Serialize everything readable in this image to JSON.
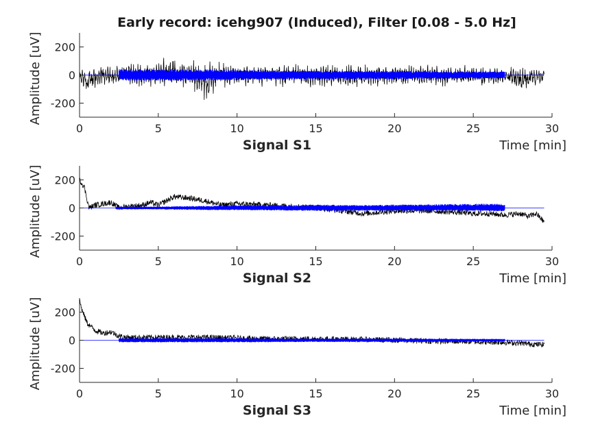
{
  "figure": {
    "title": "Early record: icehg907 (Induced), Filter [0.08 - 5.0 Hz]"
  },
  "colors": {
    "raw_signal": "#000000",
    "filtered_signal": "#0000ff",
    "axes": "#262626"
  },
  "chart_data": [
    {
      "type": "line",
      "title": "Early record: icehg907 (Induced), Filter [0.08 - 5.0 Hz]",
      "xlabel": "Signal S1",
      "x_unit_label": "Time [min]",
      "ylabel": "Amplitude [uV]",
      "xlim": [
        0,
        30
      ],
      "ylim": [
        -300,
        300
      ],
      "xticks": [
        0,
        5,
        10,
        15,
        20,
        25,
        30
      ],
      "yticks": [
        -200,
        0,
        200
      ],
      "grid": false,
      "series": [
        {
          "color": "black",
          "x_range": [
            0,
            29.5
          ],
          "x": [
            0,
            0.5,
            1,
            1.5,
            2,
            2.5,
            3,
            4,
            5,
            6,
            7,
            8,
            9,
            10,
            12,
            14,
            16,
            18,
            20,
            22,
            24,
            26,
            27,
            28,
            29,
            29.5
          ],
          "envelope_upper": [
            40,
            30,
            60,
            80,
            40,
            50,
            60,
            70,
            80,
            110,
            90,
            70,
            70,
            60,
            65,
            60,
            60,
            60,
            55,
            50,
            50,
            45,
            40,
            40,
            30,
            30
          ],
          "envelope_lower": [
            -40,
            -120,
            -80,
            -60,
            -50,
            -60,
            -60,
            -60,
            -70,
            -70,
            -60,
            -160,
            -60,
            -60,
            -60,
            -65,
            -70,
            -80,
            -60,
            -60,
            -60,
            -60,
            -60,
            -100,
            -60,
            -40
          ]
        },
        {
          "color": "blue",
          "x_range": [
            2.5,
            27
          ],
          "x": [
            2.5,
            5,
            8,
            10,
            15,
            20,
            25,
            27
          ],
          "envelope_upper": [
            40,
            40,
            40,
            35,
            30,
            30,
            25,
            25
          ],
          "envelope_lower": [
            -40,
            -40,
            -40,
            -35,
            -30,
            -30,
            -25,
            -25
          ]
        }
      ]
    },
    {
      "type": "line",
      "xlabel": "Signal S2",
      "x_unit_label": "Time [min]",
      "ylabel": "Amplitude [uV]",
      "xlim": [
        0,
        30
      ],
      "ylim": [
        -300,
        300
      ],
      "xticks": [
        0,
        5,
        10,
        15,
        20,
        25,
        30
      ],
      "yticks": [
        -200,
        0,
        200
      ],
      "grid": false,
      "series": [
        {
          "color": "black",
          "x": [
            0,
            0.3,
            0.6,
            1,
            1.5,
            2,
            2.5,
            3,
            4,
            4.5,
            5,
            5.5,
            6,
            7,
            8,
            9,
            10,
            12,
            14,
            15,
            16,
            18,
            20,
            22,
            24,
            25,
            26,
            27,
            28,
            28.5,
            29,
            29.5
          ],
          "y": [
            200,
            150,
            0,
            20,
            30,
            40,
            0,
            10,
            20,
            40,
            20,
            50,
            80,
            70,
            50,
            20,
            30,
            20,
            10,
            0,
            -10,
            -40,
            -20,
            -20,
            -30,
            -40,
            -40,
            -50,
            -40,
            -60,
            -40,
            -100
          ]
        },
        {
          "color": "blue",
          "x_range": [
            2.3,
            27
          ],
          "x": [
            2.3,
            5,
            8,
            10,
            14,
            15,
            18,
            20,
            22,
            25,
            27
          ],
          "envelope_upper": [
            10,
            10,
            15,
            20,
            20,
            25,
            20,
            25,
            25,
            30,
            30
          ],
          "envelope_lower": [
            -10,
            -10,
            -15,
            -15,
            -20,
            -20,
            -20,
            -20,
            -20,
            -20,
            -25
          ]
        }
      ]
    },
    {
      "type": "line",
      "xlabel": "Signal S3",
      "x_unit_label": "Time [min]",
      "ylabel": "Amplitude [uV]",
      "xlim": [
        0,
        30
      ],
      "ylim": [
        -300,
        300
      ],
      "xticks": [
        0,
        5,
        10,
        15,
        20,
        25,
        30
      ],
      "yticks": [
        -200,
        0,
        200
      ],
      "grid": false,
      "series": [
        {
          "color": "black",
          "x": [
            0,
            0.2,
            0.5,
            1,
            1.5,
            2,
            2.5,
            3,
            5,
            8,
            10,
            12,
            15,
            18,
            20,
            22,
            25,
            27,
            28,
            29,
            29.5
          ],
          "y": [
            280,
            200,
            120,
            70,
            50,
            60,
            30,
            20,
            20,
            20,
            15,
            10,
            10,
            5,
            0,
            -5,
            -10,
            -15,
            -20,
            -30,
            -30
          ]
        },
        {
          "color": "blue",
          "x_range": [
            2.5,
            27
          ],
          "x": [
            2.5,
            5,
            10,
            15,
            20,
            25,
            27
          ],
          "envelope_upper": [
            15,
            15,
            15,
            12,
            12,
            10,
            10
          ],
          "envelope_lower": [
            -15,
            -15,
            -15,
            -12,
            -12,
            -10,
            -10
          ]
        }
      ]
    }
  ]
}
